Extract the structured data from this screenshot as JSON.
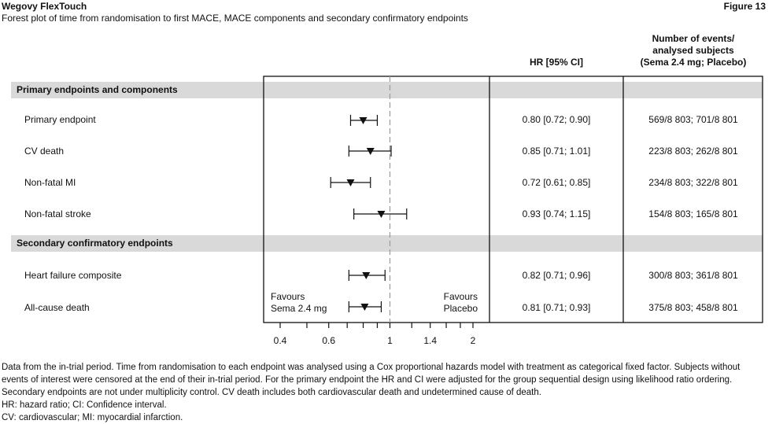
{
  "header": {
    "brand": "Wegovy FlexTouch",
    "figure_label": "Figure 13",
    "subtitle": "Forest plot of time from randomisation to first MACE, MACE components and secondary confirmatory endpoints"
  },
  "columns": {
    "hr_header": "HR [95% CI]",
    "events_header_line1": "Number of events/",
    "events_header_line2": "analysed subjects",
    "events_header_line3": "(Sema 2.4 mg; Placebo)"
  },
  "sections": [
    {
      "label": "Primary endpoints and components"
    },
    {
      "label": "Secondary confirmatory endpoints"
    }
  ],
  "favours": {
    "left_line1": "Favours",
    "left_line2": "Sema 2.4 mg",
    "right_line1": "Favours",
    "right_line2": "Placebo"
  },
  "chart_data": {
    "type": "forest",
    "x_scale": "log",
    "xlim": [
      0.4,
      2.5
    ],
    "reference_line": 1,
    "x_tick_values": [
      0.4,
      0.5,
      0.6,
      0.7,
      0.8,
      0.9,
      1,
      1.2,
      1.4,
      1.6,
      1.8,
      2
    ],
    "x_tick_labels": [
      {
        "value": 0.4,
        "label": "0.4"
      },
      {
        "value": 0.6,
        "label": "0.6"
      },
      {
        "value": 1,
        "label": "1"
      },
      {
        "value": 1.4,
        "label": "1.4"
      },
      {
        "value": 2,
        "label": "2"
      }
    ],
    "rows": [
      {
        "label": "Primary endpoint",
        "section": 0,
        "hr": 0.8,
        "lo": 0.72,
        "hi": 0.9,
        "hr_text": "0.80 [0.72; 0.90]",
        "events": "569/8 803; 701/8 801"
      },
      {
        "label": "CV death",
        "section": 0,
        "hr": 0.85,
        "lo": 0.71,
        "hi": 1.01,
        "hr_text": "0.85 [0.71; 1.01]",
        "events": "223/8 803; 262/8 801"
      },
      {
        "label": "Non-fatal MI",
        "section": 0,
        "hr": 0.72,
        "lo": 0.61,
        "hi": 0.85,
        "hr_text": "0.72 [0.61; 0.85]",
        "events": "234/8 803; 322/8 801"
      },
      {
        "label": "Non-fatal stroke",
        "section": 0,
        "hr": 0.93,
        "lo": 0.74,
        "hi": 1.15,
        "hr_text": "0.93 [0.74; 1.15]",
        "events": "154/8 803; 165/8 801"
      },
      {
        "label": "Heart failure composite",
        "section": 1,
        "hr": 0.82,
        "lo": 0.71,
        "hi": 0.96,
        "hr_text": "0.82 [0.71; 0.96]",
        "events": "300/8 803; 361/8 801"
      },
      {
        "label": "All-cause death",
        "section": 1,
        "hr": 0.81,
        "lo": 0.71,
        "hi": 0.93,
        "hr_text": "0.81 [0.71; 0.93]",
        "events": "375/8 803; 458/8 801"
      }
    ]
  },
  "footnotes": [
    "Data from the in-trial period. Time from randomisation to each endpoint was analysed using a Cox proportional hazards model with treatment as categorical fixed factor. Subjects without events of interest were censored at the end of their in-trial period. For the primary endpoint the HR and CI were adjusted for the group sequential design using likelihood ratio ordering. Secondary endpoints are not under multiplicity control. CV death includes both cardiovascular death and undetermined cause of death.",
    "HR: hazard ratio; CI: Confidence interval.",
    "CV: cardiovascular; MI: myocardial infarction."
  ]
}
